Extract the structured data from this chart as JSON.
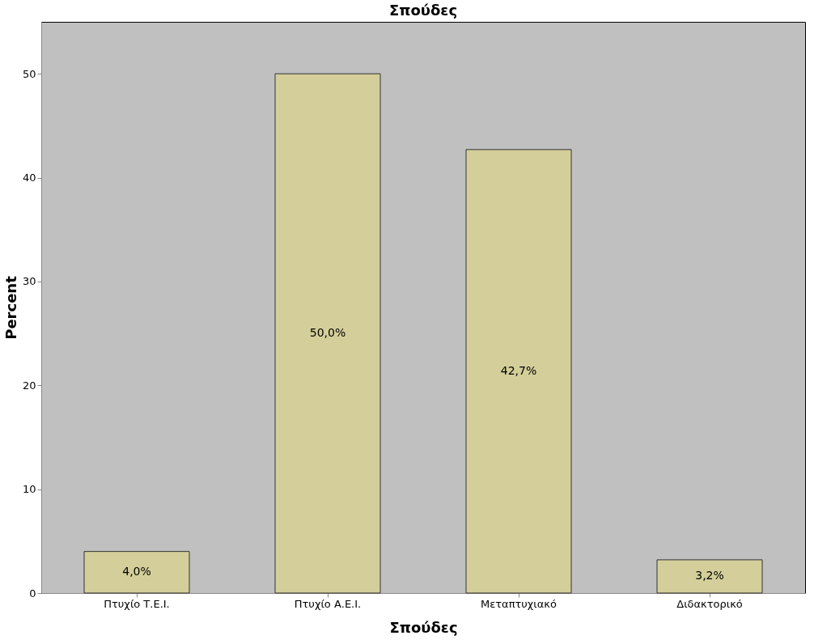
{
  "chart_data": {
    "type": "bar",
    "title": "Σπούδες",
    "xlabel": "Σπούδες",
    "ylabel": "Percent",
    "categories": [
      "Πτυχίο Τ.Ε.Ι.",
      "Πτυχίο Α.Ε.Ι.",
      "Μεταπτυχιακό",
      "Διδακτορικό"
    ],
    "values": [
      4.0,
      50.0,
      42.7,
      3.2
    ],
    "value_labels": [
      "4,0%",
      "50,0%",
      "42,7%",
      "3,2%"
    ],
    "color": "#d4cf9a",
    "ylim": [
      0,
      55
    ],
    "yticks": [
      0,
      10,
      20,
      30,
      40,
      50
    ],
    "grid": false
  }
}
